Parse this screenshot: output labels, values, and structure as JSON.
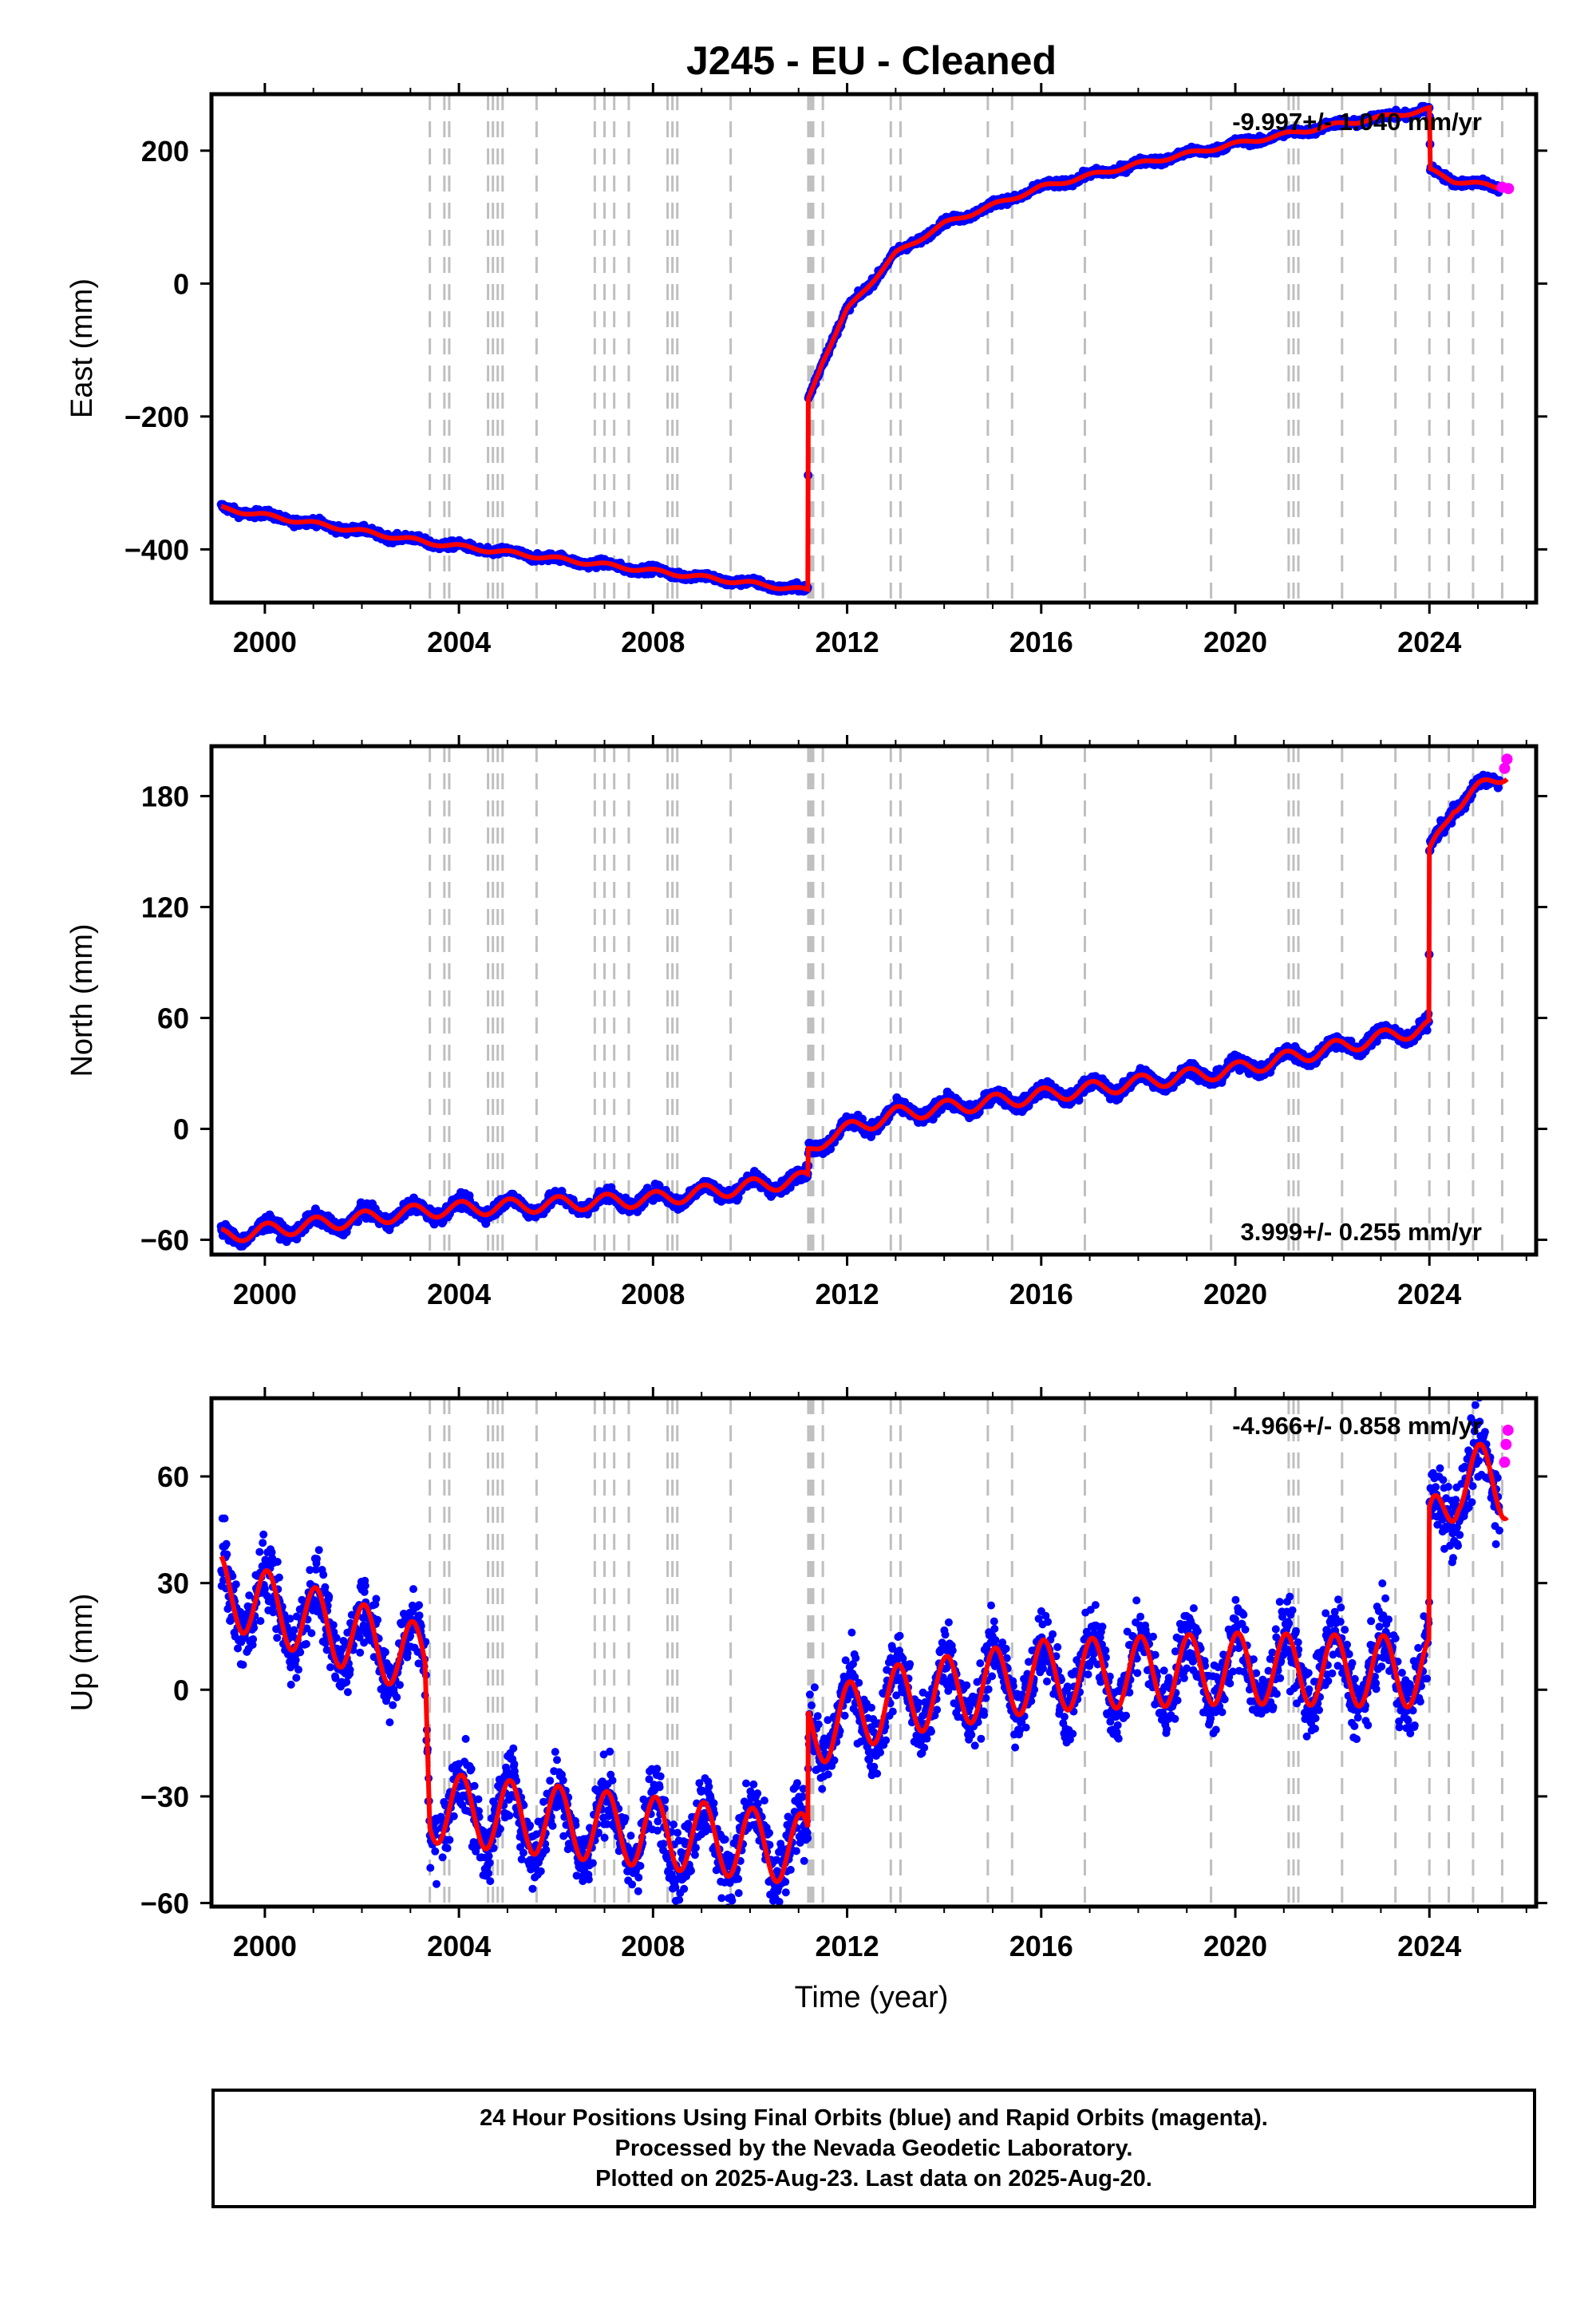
{
  "title": "J245  - EU - Cleaned",
  "xlabel": "Time (year)",
  "colors": {
    "final_orbits": "#0000ff",
    "rapid_orbits": "#ff00ff",
    "model": "#ff0000",
    "event_lines": "#bfbfbf"
  },
  "footer": {
    "line1": "24 Hour Positions Using Final Orbits (blue) and Rapid Orbits (magenta).",
    "line2": "Processed by the Nevada Geodetic Laboratory.",
    "line3": "Plotted on 2025-Aug-23. Last data on 2025-Aug-20."
  },
  "chart_data": [
    {
      "type": "scatter",
      "ylabel": "East (mm)",
      "annotation": "-9.997+/- 1.040 mm/yr",
      "annotation_position": "top-right",
      "xlim": [
        1998.9,
        2026.2
      ],
      "ylim": [
        -480,
        285
      ],
      "xticks": [
        2000,
        2004,
        2008,
        2012,
        2016,
        2020,
        2024
      ],
      "yticks": [
        -400,
        -200,
        0,
        200
      ],
      "ytick_labels": [
        "−400",
        "−200",
        "0",
        "200"
      ],
      "event_lines": [
        2003.4,
        2003.7,
        2003.8,
        2004.6,
        2004.7,
        2004.8,
        2004.9,
        2005.6,
        2006.8,
        2007.0,
        2007.2,
        2007.5,
        2008.3,
        2008.4,
        2008.5,
        2009.6,
        2011.2,
        2011.25,
        2011.3,
        2011.5,
        2012.9,
        2013.1,
        2014.9,
        2015.4,
        2016.9,
        2019.5,
        2021.1,
        2021.2,
        2021.3,
        2022.2,
        2023.3,
        2024.0,
        2024.4,
        2024.9,
        2025.5
      ],
      "model_points": [
        [
          1999.1,
          -338
        ],
        [
          2003.4,
          -390
        ],
        [
          2011.19,
          -462
        ],
        [
          2011.2,
          -175
        ],
        [
          2011.5,
          -115
        ],
        [
          2012.0,
          -40
        ],
        [
          2013.0,
          45
        ],
        [
          2014.0,
          90
        ],
        [
          2016.0,
          145
        ],
        [
          2018.0,
          180
        ],
        [
          2020.0,
          210
        ],
        [
          2022.0,
          238
        ],
        [
          2024.0,
          262
        ],
        [
          2024.02,
          170
        ],
        [
          2024.5,
          155
        ],
        [
          2025.6,
          143
        ]
      ],
      "scatter": "east",
      "rapid_points": [
        [
          2025.5,
          145
        ],
        [
          2025.63,
          143
        ]
      ]
    },
    {
      "type": "scatter",
      "ylabel": "North (mm)",
      "annotation": "3.999+/- 0.255 mm/yr",
      "annotation_position": "bottom-right",
      "xlim": [
        1998.9,
        2026.2
      ],
      "ylim": [
        -68,
        207
      ],
      "xticks": [
        2000,
        2004,
        2008,
        2012,
        2016,
        2020,
        2024
      ],
      "yticks": [
        -60,
        0,
        60,
        120,
        180
      ],
      "ytick_labels": [
        "−60",
        "0",
        "60",
        "120",
        "180"
      ],
      "event_lines": [
        2003.4,
        2003.7,
        2003.8,
        2004.6,
        2004.7,
        2004.8,
        2004.9,
        2005.6,
        2006.8,
        2007.0,
        2007.2,
        2007.5,
        2008.3,
        2008.4,
        2008.5,
        2009.6,
        2011.2,
        2011.25,
        2011.3,
        2011.5,
        2012.9,
        2013.1,
        2014.9,
        2015.4,
        2016.9,
        2019.5,
        2021.1,
        2021.2,
        2021.3,
        2022.2,
        2023.3,
        2024.0,
        2024.4,
        2024.9,
        2025.5
      ],
      "model_points": [
        [
          1999.1,
          -58
        ],
        [
          2003.4,
          -44
        ],
        [
          2008.0,
          -38
        ],
        [
          2011.19,
          -27
        ],
        [
          2011.2,
          -13
        ],
        [
          2011.6,
          -4
        ],
        [
          2013.0,
          8
        ],
        [
          2016.0,
          18
        ],
        [
          2020.0,
          32
        ],
        [
          2023.99,
          55
        ],
        [
          2024.0,
          148
        ],
        [
          2024.5,
          175
        ],
        [
          2025.6,
          193
        ]
      ],
      "scatter": "north",
      "rapid_points": [
        [
          2025.55,
          195
        ],
        [
          2025.6,
          200
        ]
      ]
    },
    {
      "type": "scatter",
      "ylabel": "Up (mm)",
      "annotation": "-4.966+/- 0.858 mm/yr",
      "annotation_position": "top-right",
      "xlim": [
        1998.9,
        2026.2
      ],
      "ylim": [
        -61,
        82
      ],
      "xticks": [
        2000,
        2004,
        2008,
        2012,
        2016,
        2020,
        2024
      ],
      "yticks": [
        -60,
        -30,
        0,
        30,
        60
      ],
      "ytick_labels": [
        "−60",
        "−30",
        "0",
        "30",
        "60"
      ],
      "event_lines": [
        2003.4,
        2003.7,
        2003.8,
        2004.6,
        2004.7,
        2004.8,
        2004.9,
        2005.6,
        2006.8,
        2007.0,
        2007.2,
        2007.5,
        2008.3,
        2008.4,
        2008.5,
        2009.6,
        2011.2,
        2011.25,
        2011.3,
        2011.5,
        2012.9,
        2013.1,
        2014.9,
        2015.4,
        2016.9,
        2019.5,
        2021.1,
        2021.2,
        2021.3,
        2022.2,
        2023.3,
        2024.0,
        2024.4,
        2024.9,
        2025.5
      ],
      "model_points": [
        [
          1999.1,
          28
        ],
        [
          2003.3,
          8
        ],
        [
          2003.4,
          -33
        ],
        [
          2011.19,
          -45
        ],
        [
          2011.2,
          -12
        ],
        [
          2013.0,
          -3
        ],
        [
          2016.0,
          4
        ],
        [
          2020.0,
          6
        ],
        [
          2023.99,
          5
        ],
        [
          2024.0,
          42
        ],
        [
          2024.6,
          60
        ],
        [
          2025.6,
          58
        ]
      ],
      "scatter": "up",
      "rapid_points": [
        [
          2025.55,
          64
        ],
        [
          2025.58,
          69
        ],
        [
          2025.62,
          73
        ]
      ]
    }
  ]
}
